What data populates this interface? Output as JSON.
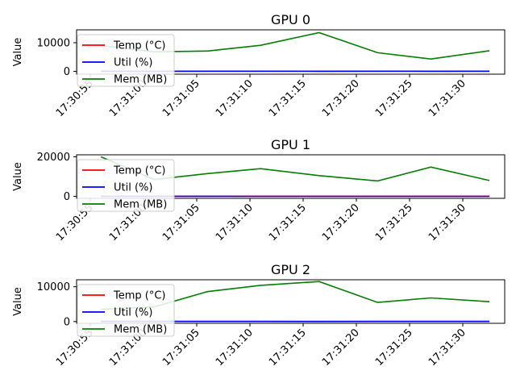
{
  "chart_data": [
    {
      "type": "line",
      "title": "GPU 0",
      "ylabel": "Value",
      "ylim": [
        -1000,
        14500
      ],
      "yticks": [
        0,
        10000
      ],
      "x": [
        "17:30:56",
        "17:31:01",
        "17:31:06",
        "17:31:11",
        "17:31:16.5",
        "17:31:22",
        "17:31:27",
        "17:31:32.5"
      ],
      "xticks": [
        "17:30:55",
        "17:31:00",
        "17:31:05",
        "17:31:10",
        "17:31:15",
        "17:31:20",
        "17:31:25",
        "17:31:30"
      ],
      "legend_position": "lower-left",
      "series": [
        {
          "name": "Temp (°C)",
          "color": "#ff0000",
          "values": [
            45,
            46,
            47,
            46,
            48,
            47,
            46,
            47
          ]
        },
        {
          "name": "Util (%)",
          "color": "#0000ff",
          "values": [
            30,
            25,
            40,
            35,
            20,
            30,
            25,
            35
          ]
        },
        {
          "name": "Mem (MB)",
          "color": "#008000",
          "values": [
            9000,
            6800,
            7100,
            9100,
            13500,
            6500,
            4300,
            7200
          ]
        }
      ]
    },
    {
      "type": "line",
      "title": "GPU 1",
      "ylabel": "Value",
      "ylim": [
        -1000,
        21000
      ],
      "yticks": [
        0,
        20000
      ],
      "x": [
        "17:30:56",
        "17:31:01",
        "17:31:06",
        "17:31:11",
        "17:31:16.5",
        "17:31:22",
        "17:31:27",
        "17:31:32.5"
      ],
      "xticks": [
        "17:30:55",
        "17:31:00",
        "17:31:05",
        "17:31:10",
        "17:31:15",
        "17:31:20",
        "17:31:25",
        "17:31:30"
      ],
      "legend_position": "lower-left",
      "series": [
        {
          "name": "Temp (°C)",
          "color": "#ff0000",
          "values": [
            45,
            46,
            47,
            46,
            48,
            47,
            46,
            47
          ]
        },
        {
          "name": "Util (%)",
          "color": "#0000ff",
          "values": [
            30,
            25,
            40,
            35,
            20,
            30,
            25,
            35
          ]
        },
        {
          "name": "Mem (MB)",
          "color": "#008000",
          "values": [
            20000,
            8500,
            11500,
            14000,
            10500,
            7800,
            14800,
            8000
          ]
        }
      ]
    },
    {
      "type": "line",
      "title": "GPU 2",
      "ylabel": "Value",
      "ylim": [
        -500,
        12000
      ],
      "yticks": [
        0,
        10000
      ],
      "x": [
        "17:30:56",
        "17:31:01",
        "17:31:06",
        "17:31:11",
        "17:31:16.5",
        "17:31:22",
        "17:31:27",
        "17:31:32.5"
      ],
      "xticks": [
        "17:30:55",
        "17:31:00",
        "17:31:05",
        "17:31:10",
        "17:31:15",
        "17:31:20",
        "17:31:25",
        "17:31:30"
      ],
      "legend_position": "lower-left",
      "series": [
        {
          "name": "Temp (°C)",
          "color": "#ff0000",
          "values": [
            45,
            46,
            47,
            46,
            48,
            47,
            46,
            47
          ]
        },
        {
          "name": "Util (%)",
          "color": "#0000ff",
          "values": [
            30,
            25,
            40,
            35,
            20,
            30,
            25,
            35
          ]
        },
        {
          "name": "Mem (MB)",
          "color": "#008000",
          "values": [
            3500,
            4200,
            8600,
            10400,
            11500,
            5500,
            6800,
            5700
          ]
        }
      ]
    }
  ]
}
